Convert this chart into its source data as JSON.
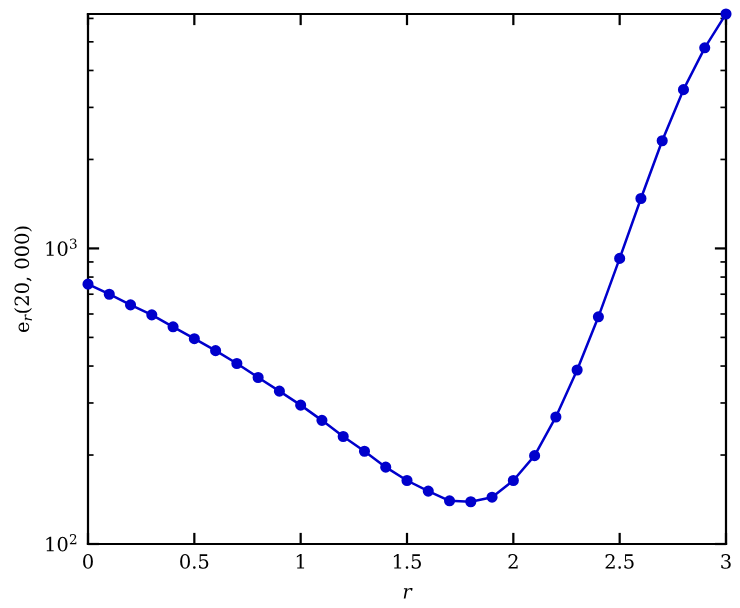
{
  "chart_data": {
    "type": "line",
    "xlabel": "r",
    "ylabel": "e$_{r}$(20, 000)",
    "log": "y",
    "marker": "circle",
    "line_style": "solid",
    "grid": false,
    "x": [
      0,
      0.1,
      0.2,
      0.3,
      0.4,
      0.5,
      0.6,
      0.7,
      0.8,
      0.9,
      1.0,
      1.1,
      1.2,
      1.3,
      1.4,
      1.5,
      1.6,
      1.7,
      1.8,
      1.9,
      2.0,
      2.1,
      2.2,
      2.3,
      2.4,
      2.5,
      2.6,
      2.7,
      2.8,
      2.9,
      3.0
    ],
    "series": [
      {
        "color": "#0000cc",
        "values": [
          757,
          700,
          644,
          596,
          543,
          495,
          451,
          408,
          366,
          329,
          295,
          262,
          231,
          206,
          182,
          164,
          151,
          140,
          139,
          144,
          164,
          199,
          269,
          388,
          587,
          925,
          1475,
          2314,
          3444,
          4772,
          6210
        ]
      }
    ],
    "xlim": [
      0,
      3
    ],
    "ylim": [
      100,
      6210
    ],
    "xticks": [
      0,
      0.5,
      1,
      1.5,
      2,
      2.5,
      3
    ],
    "yticks": [
      {
        "value": 100,
        "label": "10$^{2}$"
      },
      {
        "value": 1000,
        "label": "10$^{3}$"
      }
    ]
  }
}
